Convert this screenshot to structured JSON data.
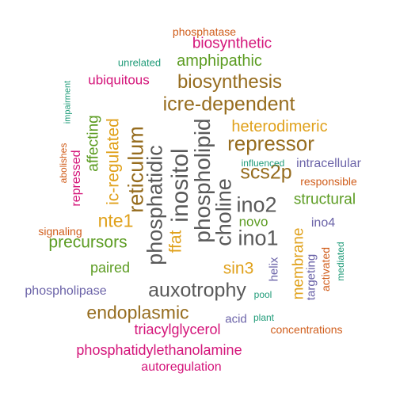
{
  "colors": {
    "gray": "#595959",
    "brown": "#966c1e",
    "gold": "#e0a11b",
    "green": "#5c9c22",
    "magenta": "#d4157a",
    "purple": "#6b63a8",
    "orange": "#d05d1b",
    "teal": "#1f9b78"
  },
  "words": [
    {
      "text": "phosphatase",
      "color": "orange",
      "vertical": false
    },
    {
      "text": "biosynthetic",
      "color": "magenta",
      "vertical": false
    },
    {
      "text": "unrelated",
      "color": "teal",
      "vertical": false
    },
    {
      "text": "amphipathic",
      "color": "green",
      "vertical": false
    },
    {
      "text": "ubiquitous",
      "color": "magenta",
      "vertical": false
    },
    {
      "text": "biosynthesis",
      "color": "brown",
      "vertical": false
    },
    {
      "text": "impairment",
      "color": "teal",
      "vertical": true
    },
    {
      "text": "icre-dependent",
      "color": "brown",
      "vertical": false
    },
    {
      "text": "heterodimeric",
      "color": "gold",
      "vertical": false
    },
    {
      "text": "repressor",
      "color": "brown",
      "vertical": false
    },
    {
      "text": "scs2p",
      "color": "brown",
      "vertical": false
    },
    {
      "text": "influenced",
      "color": "teal",
      "vertical": false
    },
    {
      "text": "intracellular",
      "color": "purple",
      "vertical": false
    },
    {
      "text": "responsible",
      "color": "orange",
      "vertical": false
    },
    {
      "text": "structural",
      "color": "green",
      "vertical": false
    },
    {
      "text": "ino2",
      "color": "gray",
      "vertical": false
    },
    {
      "text": "novo",
      "color": "green",
      "vertical": false
    },
    {
      "text": "ino4",
      "color": "purple",
      "vertical": false
    },
    {
      "text": "ino1",
      "color": "gray",
      "vertical": false
    },
    {
      "text": "nte1",
      "color": "gold",
      "vertical": false
    },
    {
      "text": "signaling",
      "color": "orange",
      "vertical": false
    },
    {
      "text": "precursors",
      "color": "green",
      "vertical": false
    },
    {
      "text": "paired",
      "color": "green",
      "vertical": false
    },
    {
      "text": "sin3",
      "color": "gold",
      "vertical": false
    },
    {
      "text": "phospholipase",
      "color": "purple",
      "vertical": false
    },
    {
      "text": "auxotrophy",
      "color": "gray",
      "vertical": false
    },
    {
      "text": "pool",
      "color": "teal",
      "vertical": false
    },
    {
      "text": "endoplasmic",
      "color": "brown",
      "vertical": false
    },
    {
      "text": "acid",
      "color": "purple",
      "vertical": false
    },
    {
      "text": "plant",
      "color": "teal",
      "vertical": false
    },
    {
      "text": "triacylglycerol",
      "color": "magenta",
      "vertical": false
    },
    {
      "text": "concentrations",
      "color": "orange",
      "vertical": false
    },
    {
      "text": "phosphatidylethanolamine",
      "color": "magenta",
      "vertical": false
    },
    {
      "text": "autoregulation",
      "color": "magenta",
      "vertical": false
    },
    {
      "text": "abolishes",
      "color": "orange",
      "vertical": true
    },
    {
      "text": "repressed",
      "color": "magenta",
      "vertical": true
    },
    {
      "text": "affecting",
      "color": "green",
      "vertical": true
    },
    {
      "text": "ic-regulated",
      "color": "gold",
      "vertical": true
    },
    {
      "text": "reticulum",
      "color": "brown",
      "vertical": true
    },
    {
      "text": "phosphatidic",
      "color": "gray",
      "vertical": true
    },
    {
      "text": "ffat",
      "color": "gold",
      "vertical": true
    },
    {
      "text": "inositol",
      "color": "gray",
      "vertical": true
    },
    {
      "text": "phospholipid",
      "color": "gray",
      "vertical": true
    },
    {
      "text": "choline",
      "color": "gray",
      "vertical": true
    },
    {
      "text": "membrane",
      "color": "gold",
      "vertical": true
    },
    {
      "text": "helix",
      "color": "purple",
      "vertical": true
    },
    {
      "text": "targeting",
      "color": "purple",
      "vertical": true
    },
    {
      "text": "activated",
      "color": "orange",
      "vertical": true
    },
    {
      "text": "mediated",
      "color": "teal",
      "vertical": true
    }
  ]
}
